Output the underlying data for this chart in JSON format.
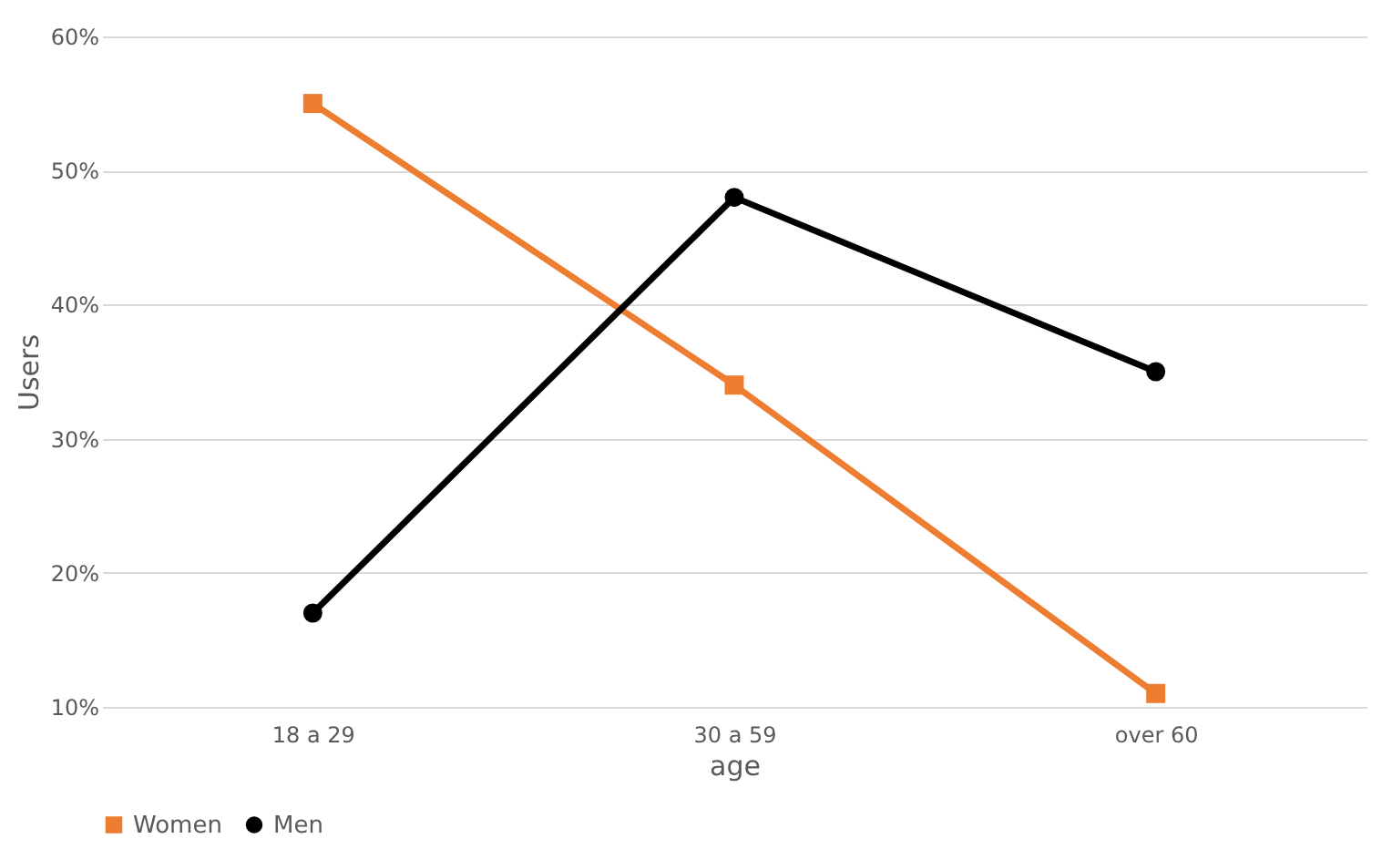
{
  "chart_data": {
    "type": "line",
    "xlabel": "age",
    "ylabel": "Users",
    "categories": [
      "18 a 29",
      "30 a 59",
      "over 60"
    ],
    "series": [
      {
        "name": "Women",
        "color": "#ed7d31",
        "values": [
          55,
          34,
          11
        ],
        "marker": "square"
      },
      {
        "name": "Men",
        "color": "#000000",
        "values": [
          17,
          48,
          35
        ],
        "marker": "circle"
      }
    ],
    "ylim": [
      10,
      60
    ],
    "yticks": [
      {
        "value": 10,
        "label": "10%"
      },
      {
        "value": 20,
        "label": "20%"
      },
      {
        "value": 30,
        "label": "30%"
      },
      {
        "value": 40,
        "label": "40%"
      },
      {
        "value": 50,
        "label": "50%"
      },
      {
        "value": 60,
        "label": "60%"
      }
    ],
    "grid": "y",
    "legend": "bottom",
    "line_style": "solid"
  }
}
